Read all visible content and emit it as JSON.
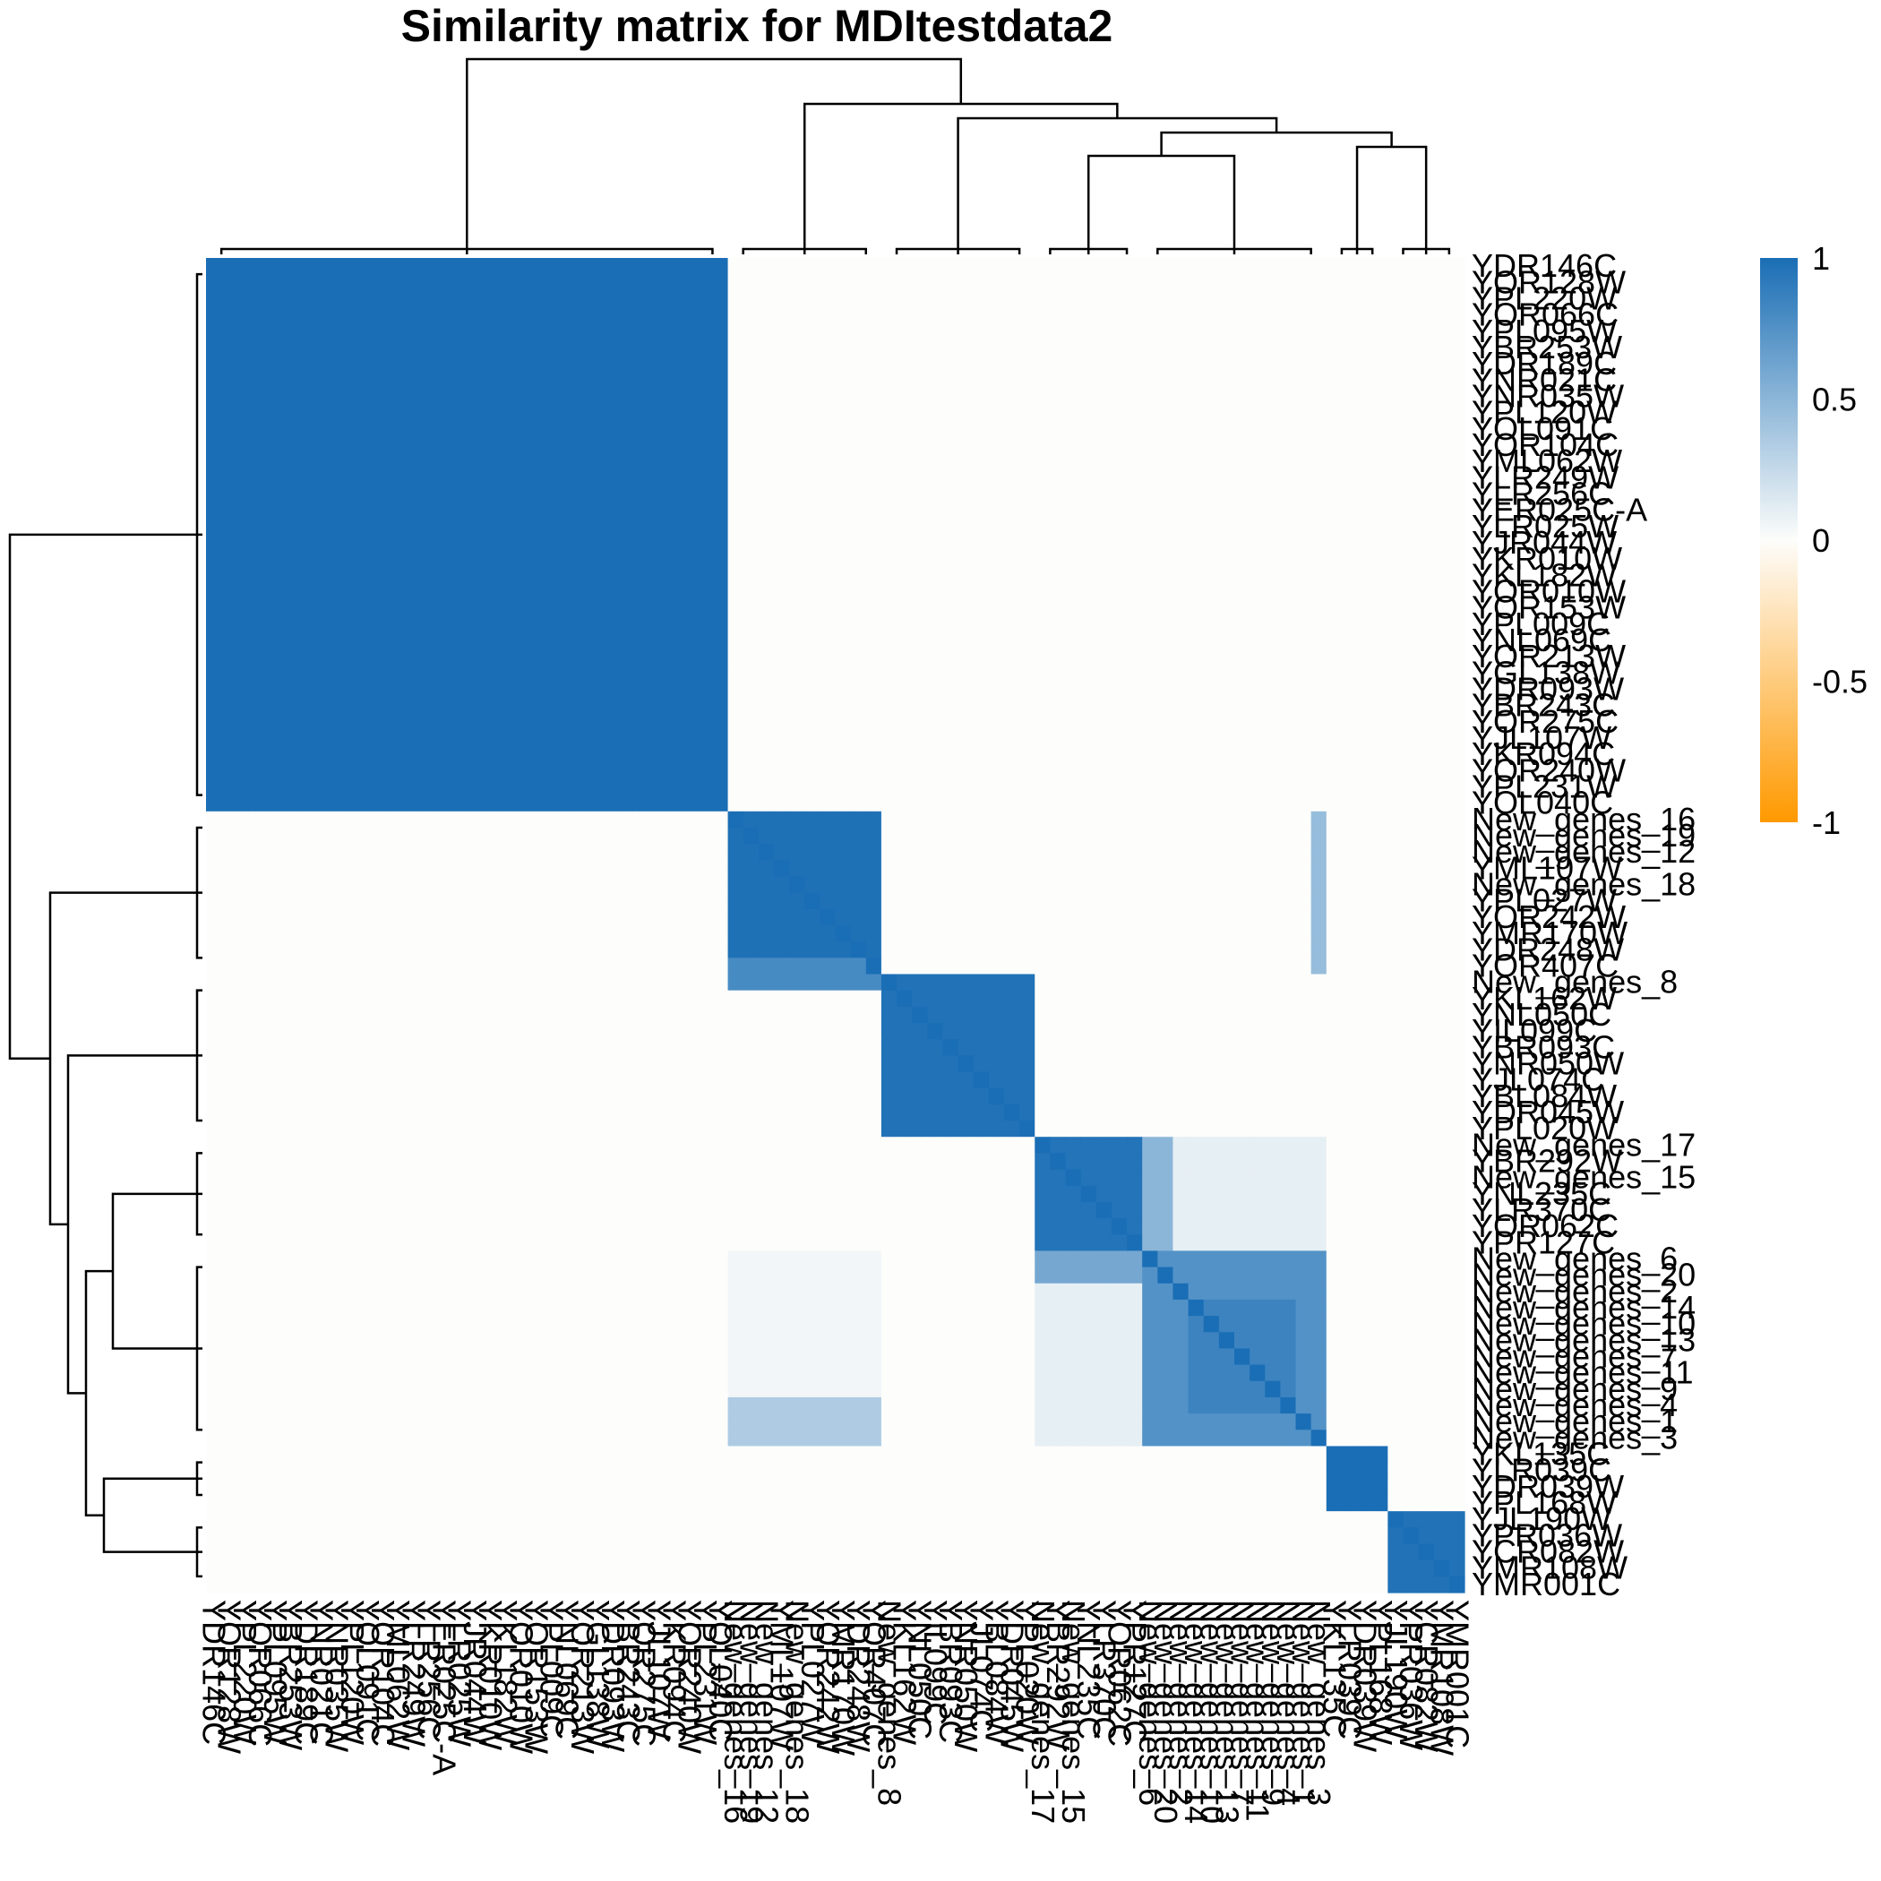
{
  "chart_data": {
    "type": "heatmap",
    "title": "Similarity matrix for MDItestdata2",
    "xlabel": "",
    "ylabel": "",
    "value_range": [
      -1,
      1
    ],
    "legend": {
      "placement": "right",
      "ticks": [
        {
          "value": 1,
          "label": "1"
        },
        {
          "value": 0.5,
          "label": "0.5"
        },
        {
          "value": 0,
          "label": "0"
        },
        {
          "value": -0.5,
          "label": "-0.5"
        },
        {
          "value": -1,
          "label": "-1"
        }
      ]
    },
    "colors": {
      "high": "#1a6eb5",
      "mid": "#fdfdfb",
      "low": "#ff9900"
    },
    "row_labels": [
      "YDR146C",
      "YOR128W",
      "YPL220W",
      "YOR066C",
      "YPL095W",
      "YBR253W",
      "YDR189C",
      "YNR021C",
      "YNR035W",
      "YPL120W",
      "YOL091C",
      "YOR104C",
      "YML062W",
      "YLR249W",
      "YLR256C",
      "YER025C-A",
      "YLR025W",
      "YJR044W",
      "YKR010W",
      "YKL182W",
      "YOR010W",
      "YOR153W",
      "YPL009C",
      "YNL069C",
      "YOR213W",
      "YGL138W",
      "YDR093W",
      "YBR243C",
      "YOR275C",
      "YJL107W",
      "YKR094C",
      "YOR240W",
      "YPL231W",
      "YOL040C",
      "New_genes_16",
      "New_genes_19",
      "New_genes_12",
      "YML107W",
      "New_genes_18",
      "YPL027W",
      "YOR242W",
      "YMR170W",
      "YDR248W",
      "YOR407C",
      "New_genes_8",
      "YKL162W",
      "YNL050C",
      "YIL099C",
      "YBR093C",
      "YNR050W",
      "YJL074C",
      "YBL084W",
      "YDR045W",
      "YPL020W",
      "New_genes_17",
      "YBR292W",
      "New_genes_15",
      "YNL235C",
      "YLR370C",
      "YOR062C",
      "YPR127C",
      "New_genes_6",
      "New_genes_20",
      "New_genes_2",
      "New_genes_14",
      "New_genes_10",
      "New_genes_13",
      "New_genes_7",
      "New_genes_11",
      "New_genes_9",
      "New_genes_4",
      "New_genes_1",
      "New_genes_3",
      "YKL135C",
      "YLR039C",
      "YDR039W",
      "YPL168W",
      "YJL190W",
      "YPR036W",
      "YCR082W",
      "YMR108W",
      "YMR001C"
    ],
    "col_labels": [
      "YDR146C",
      "YOR128W",
      "YPL220W",
      "YOR066C",
      "YPL095W",
      "YBR253W",
      "YDR189C",
      "YNR021C",
      "YNR035W",
      "YPL120W",
      "YOL091C",
      "YOR104C",
      "YML062W",
      "YLR249W",
      "YLR256C",
      "YER025C-A",
      "YLR025W",
      "YJR044W",
      "YKR010W",
      "YKL182W",
      "YOR010W",
      "YOR153W",
      "YPL009C",
      "YNL069C",
      "YOR213W",
      "YGL138W",
      "YDR093W",
      "YBR243C",
      "YOR275C",
      "YJL107W",
      "YKR094C",
      "YOR240W",
      "YPL231W",
      "YOL040C",
      "New_genes_16",
      "New_genes_19",
      "New_genes_12",
      "YML107W",
      "New_genes_18",
      "YPL027W",
      "YOR242W",
      "YMR170W",
      "YDR248W",
      "YOR407C",
      "New_genes_8",
      "YKL162W",
      "YNL050C",
      "YIL099C",
      "YBR093C",
      "YNR050W",
      "YJL074C",
      "YBL084W",
      "YDR045W",
      "YPL020W",
      "New_genes_17",
      "YBR292W",
      "New_genes_15",
      "YNL235C",
      "YLR370C",
      "YOR062C",
      "YPR127C",
      "New_genes_6",
      "New_genes_20",
      "New_genes_2",
      "New_genes_14",
      "New_genes_10",
      "New_genes_13",
      "New_genes_7",
      "New_genes_11",
      "New_genes_9",
      "New_genes_4",
      "New_genes_1",
      "New_genes_3",
      "YKL135C",
      "YLR039C",
      "YDR039W",
      "YPL168W",
      "YJL190W",
      "YPR036W",
      "YCR082W",
      "YMR108W",
      "YMR001C"
    ],
    "blocks": [
      {
        "rows": [
          0,
          33
        ],
        "cols": [
          0,
          33
        ],
        "value": 1.0
      },
      {
        "rows": [
          34,
          43
        ],
        "cols": [
          34,
          43
        ],
        "value": 0.98
      },
      {
        "rows": [
          44,
          53
        ],
        "cols": [
          44,
          53
        ],
        "value": 0.97
      },
      {
        "rows": [
          54,
          60
        ],
        "cols": [
          54,
          60
        ],
        "value": 0.96
      },
      {
        "rows": [
          61,
          72
        ],
        "cols": [
          61,
          72
        ],
        "value": 0.75
      },
      {
        "rows": [
          73,
          76
        ],
        "cols": [
          73,
          76
        ],
        "value": 1.0
      },
      {
        "rows": [
          77,
          81
        ],
        "cols": [
          77,
          81
        ],
        "value": 0.97
      },
      {
        "rows": [
          34,
          43
        ],
        "cols": [
          72,
          72
        ],
        "value": 0.45
      },
      {
        "rows": [
          61,
          72
        ],
        "cols": [
          34,
          43
        ],
        "value": 0.05
      },
      {
        "rows": [
          70,
          72
        ],
        "cols": [
          34,
          43
        ],
        "value": 0.35
      },
      {
        "rows": [
          61,
          72
        ],
        "cols": [
          54,
          60
        ],
        "value": 0.1
      },
      {
        "rows": [
          54,
          60
        ],
        "cols": [
          61,
          72
        ],
        "value": 0.1
      },
      {
        "rows": [
          61,
          62
        ],
        "cols": [
          54,
          60
        ],
        "value": 0.6
      },
      {
        "rows": [
          54,
          60
        ],
        "cols": [
          61,
          62
        ],
        "value": 0.5
      },
      {
        "rows": [
          64,
          70
        ],
        "cols": [
          64,
          70
        ],
        "value": 0.85
      },
      {
        "rows": [
          43,
          44
        ],
        "cols": [
          34,
          43
        ],
        "value": 0.8
      }
    ]
  }
}
